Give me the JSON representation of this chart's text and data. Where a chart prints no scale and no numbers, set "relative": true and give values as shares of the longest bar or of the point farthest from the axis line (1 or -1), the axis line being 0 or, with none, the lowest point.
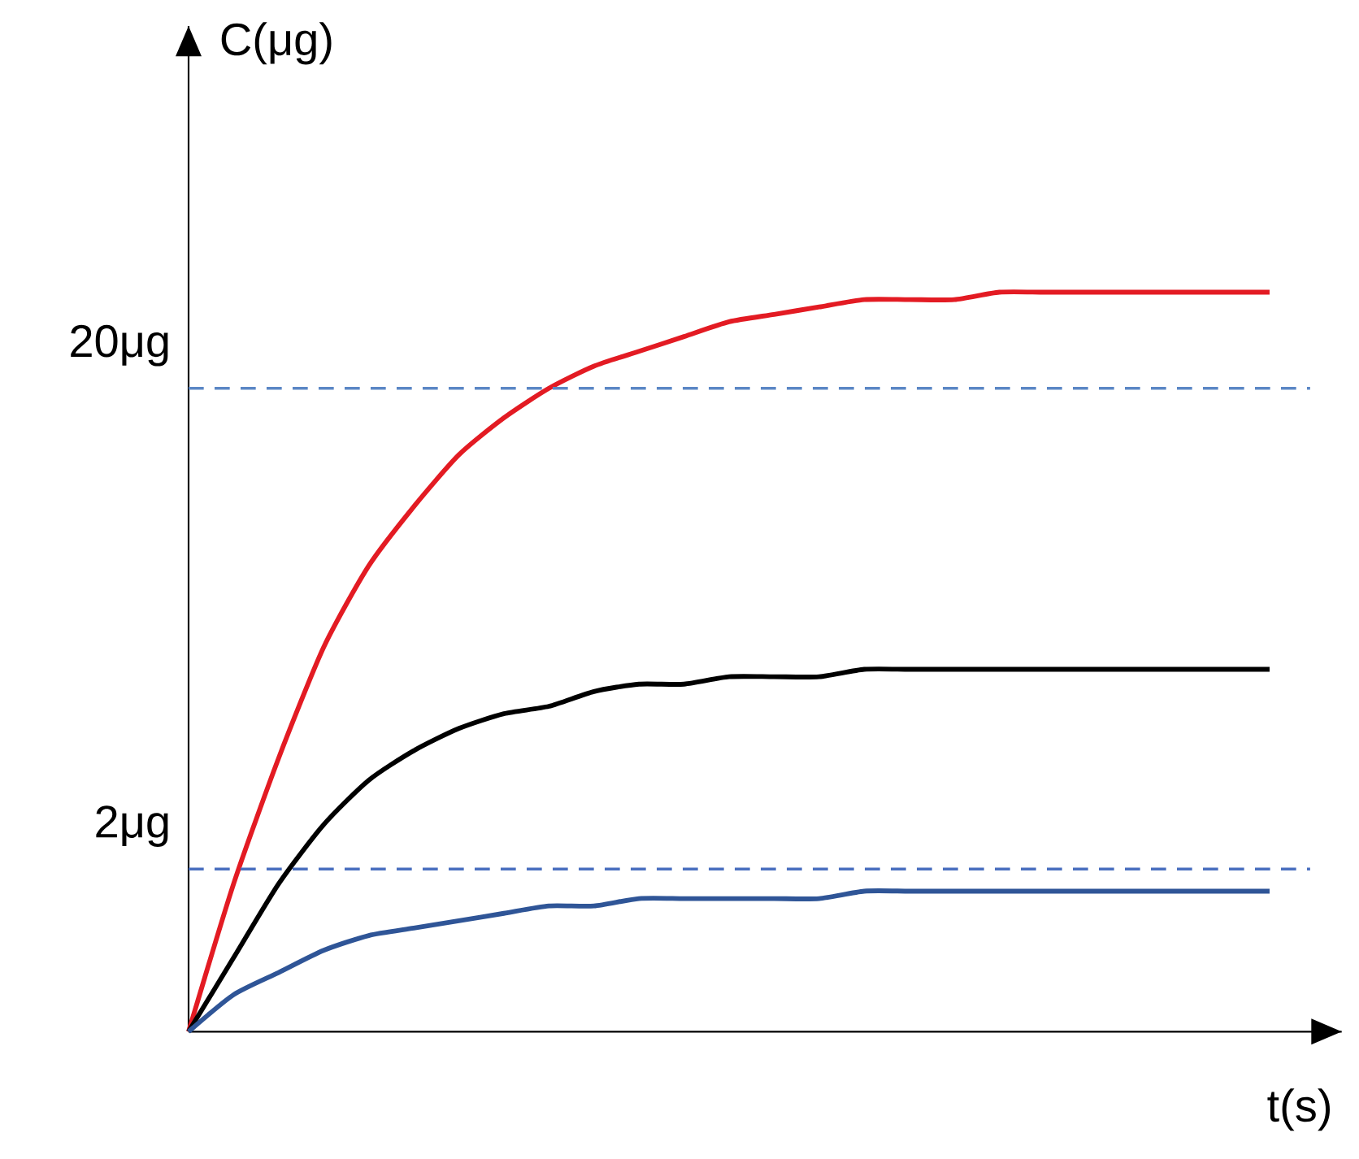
{
  "chart_data": {
    "type": "line",
    "xlabel": "t(s)",
    "annotations": [
      "C(μg)"
    ],
    "categories": [
      null,
      null,
      null,
      null,
      null,
      null,
      null,
      null,
      null,
      null,
      null,
      null,
      null,
      null,
      null,
      null,
      null,
      null,
      null,
      null,
      null,
      null,
      null,
      null,
      null
    ],
    "relative": true,
    "marker": "none",
    "series": [
      {
        "color": "#e31b23",
        "values": [
          0,
          0.2,
          0.37,
          0.52,
          0.63,
          0.71,
          0.78,
          0.83,
          0.87,
          0.9,
          0.92,
          0.94,
          0.96,
          0.97,
          0.98,
          0.99,
          0.99,
          0.99,
          1,
          1,
          1,
          1,
          1,
          1,
          1
        ]
      },
      {
        "color": "#000000",
        "values": [
          0,
          0.1,
          0.2,
          0.28,
          0.34,
          0.38,
          0.41,
          0.43,
          0.44,
          0.46,
          0.47,
          0.47,
          0.48,
          0.48,
          0.48,
          0.49,
          0.49,
          0.49,
          0.49,
          0.49,
          0.49,
          0.49,
          0.49,
          0.49,
          0.49
        ]
      },
      {
        "color": "#2f5597",
        "values": [
          0,
          0.05,
          0.08,
          0.11,
          0.13,
          0.14,
          0.15,
          0.16,
          0.17,
          0.17,
          0.18,
          0.18,
          0.18,
          0.18,
          0.18,
          0.19,
          0.19,
          0.19,
          0.19,
          0.19,
          0.19,
          0.19,
          0.19,
          0.19,
          0.19
        ]
      }
    ],
    "ref_lines": [
      {
        "axis": "y",
        "value": 0.87,
        "label": "20μg",
        "color": "#5b87c5",
        "line_style": "dashed"
      },
      {
        "axis": "y",
        "value": 0.22,
        "label": "2μg",
        "color": "#4a6fbf",
        "line_style": "dashed"
      }
    ]
  }
}
